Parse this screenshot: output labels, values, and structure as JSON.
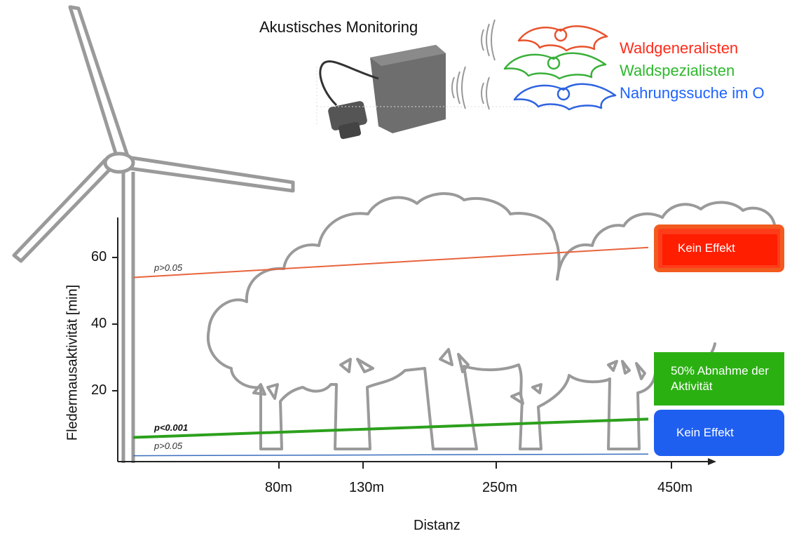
{
  "header": {
    "monitoring_title": "Akustisches Monitoring"
  },
  "legend": [
    {
      "label": "Waldgeneralisten",
      "color": "#ff2b1a"
    },
    {
      "label": "Waldspezialisten",
      "color": "#2db82d"
    },
    {
      "label": "Nahrungssuche im O",
      "color": "#1e63ff"
    }
  ],
  "chart_data": {
    "type": "line",
    "xlabel": "Distanz",
    "ylabel": "Fledermausaktivität [min]",
    "x_ticks": [
      "80m",
      "130m",
      "250m",
      "450m"
    ],
    "y_ticks": [
      20,
      40,
      60
    ],
    "series": [
      {
        "name": "Waldgeneralisten",
        "color": "#e8643c",
        "p_label": "p>0.05",
        "y_start": 54,
        "y_end": 63,
        "width": 2,
        "p_bold": false
      },
      {
        "name": "Waldspezialisten",
        "color": "#2ca01c",
        "p_label": "p<0.001",
        "y_start": 6,
        "y_end": 11.5,
        "width": 4,
        "p_bold": true
      },
      {
        "name": "Nahrungssuche im O",
        "color": "#3a6ebe",
        "p_label": "p>0.05",
        "y_start": 0.5,
        "y_end": 1,
        "width": 1.5,
        "p_bold": false
      }
    ],
    "annotations": [
      {
        "text": "Kein Effekt",
        "series": "Waldgeneralisten"
      },
      {
        "text": "50% Abnahme der Aktivität",
        "series": "Waldspezialisten"
      },
      {
        "text": "Kein Effekt",
        "series": "Nahrungssuche im O"
      }
    ]
  }
}
